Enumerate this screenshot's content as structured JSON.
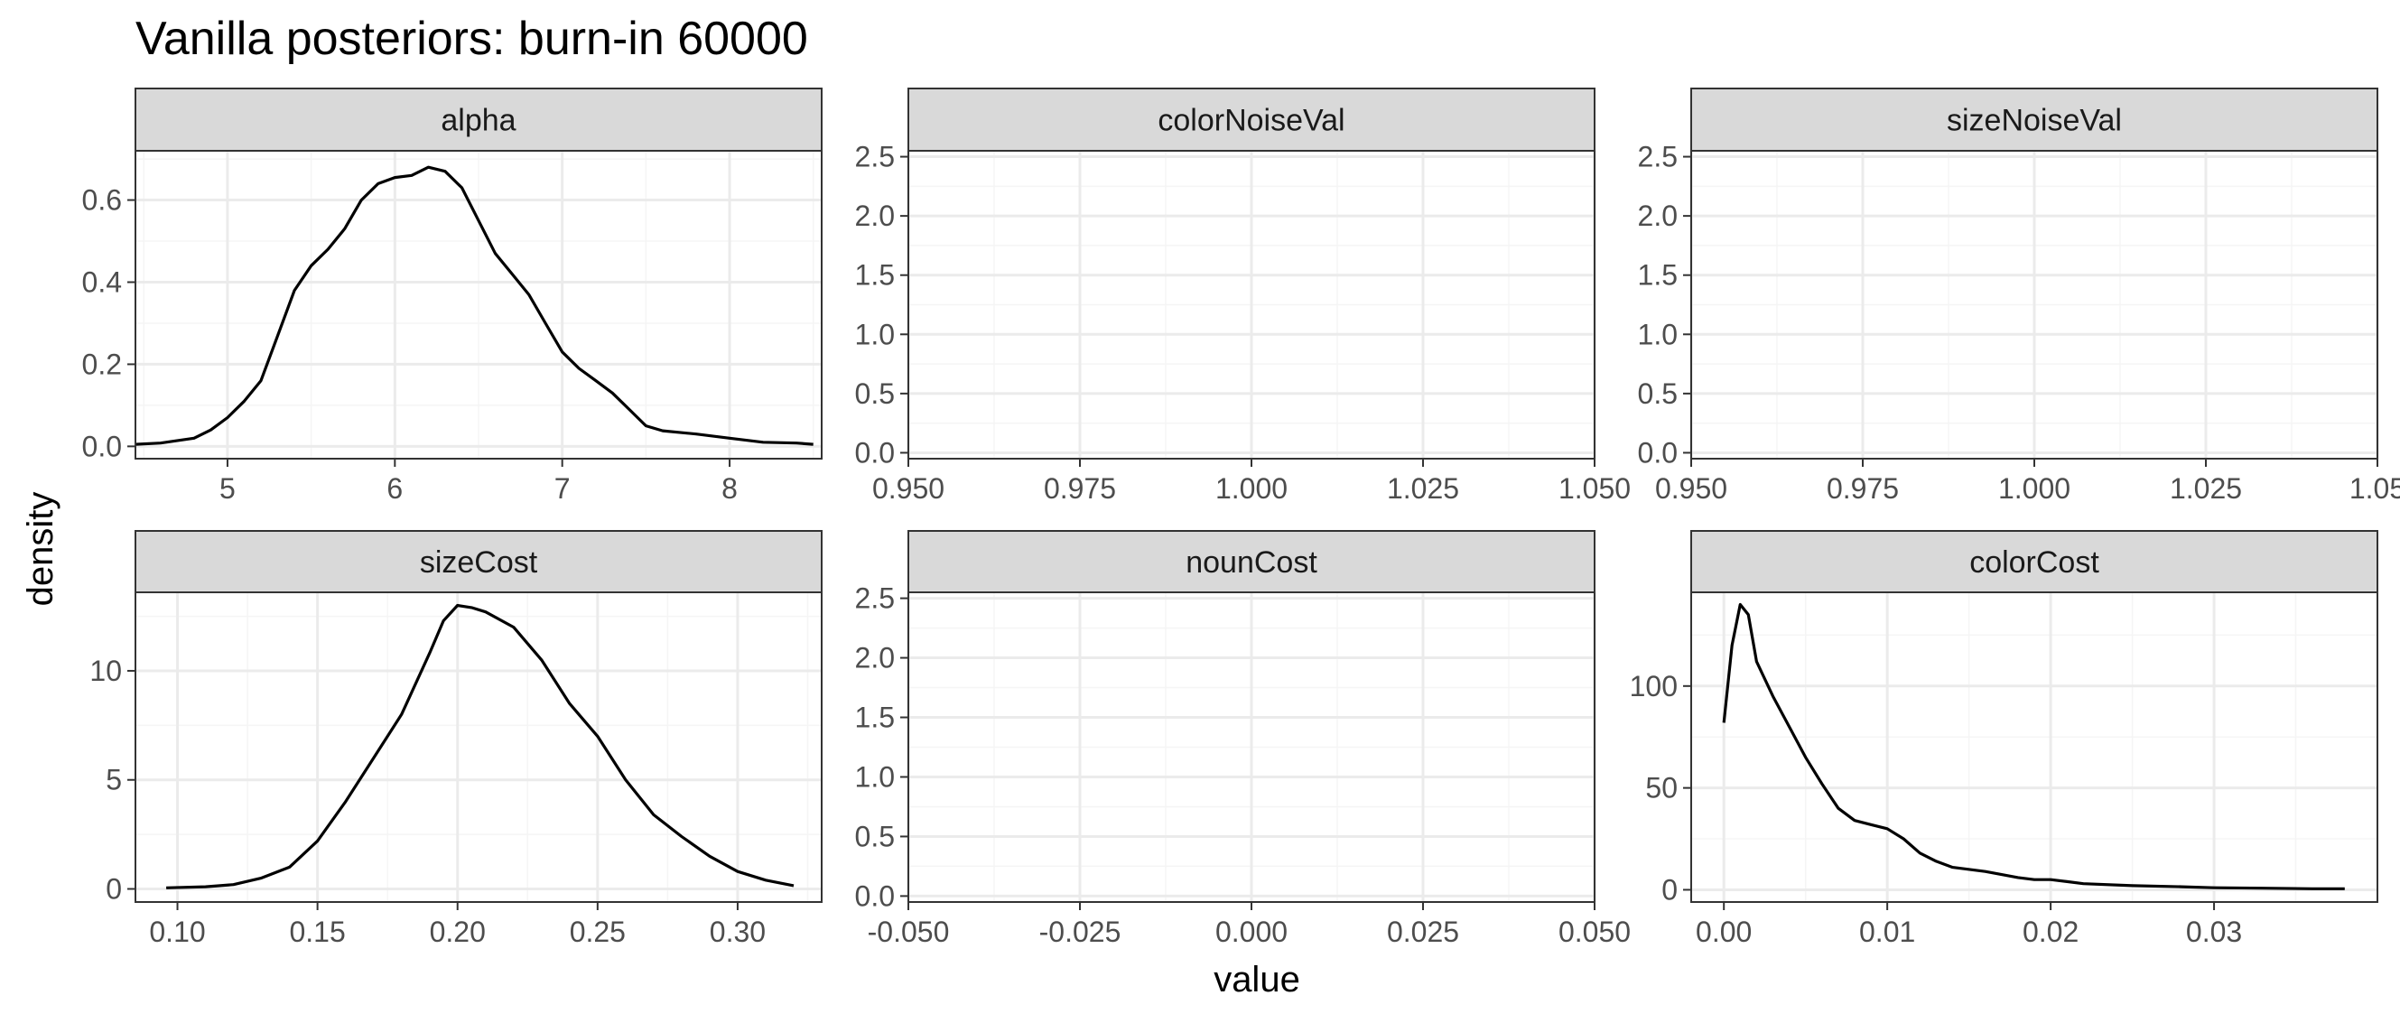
{
  "chart_data": {
    "type": "line",
    "title": "Vanilla posteriors: burn-in 60000",
    "xlabel": "value",
    "ylabel": "density",
    "grid": true,
    "legend": "none",
    "colors": {
      "line": "#000000",
      "strip_fill": "#d9d9d9",
      "strip_border": "#333333",
      "panel_border": "#333333",
      "grid_major": "#ebebeb",
      "grid_minor": "#f5f5f5",
      "tick_text": "#4d4d4d"
    },
    "panels": [
      {
        "name": "alpha",
        "xlim": [
          4.45,
          8.55
        ],
        "ylim": [
          -0.03,
          0.72
        ],
        "xticks": [
          5,
          6,
          7,
          8
        ],
        "xtick_labels": [
          "5",
          "6",
          "7",
          "8"
        ],
        "yticks": [
          0,
          0.2,
          0.4,
          0.6
        ],
        "ytick_labels": [
          "0.0",
          "0.2",
          "0.4",
          "0.6"
        ],
        "x": [
          4.45,
          4.6,
          4.8,
          4.9,
          5.0,
          5.1,
          5.2,
          5.3,
          5.4,
          5.5,
          5.6,
          5.7,
          5.8,
          5.9,
          6.0,
          6.1,
          6.2,
          6.3,
          6.4,
          6.5,
          6.6,
          6.7,
          6.8,
          6.9,
          7.0,
          7.1,
          7.2,
          7.3,
          7.4,
          7.5,
          7.6,
          7.8,
          8.0,
          8.2,
          8.4,
          8.5
        ],
        "y": [
          0.005,
          0.008,
          0.02,
          0.04,
          0.07,
          0.11,
          0.16,
          0.27,
          0.38,
          0.44,
          0.48,
          0.53,
          0.6,
          0.64,
          0.655,
          0.66,
          0.68,
          0.67,
          0.63,
          0.55,
          0.47,
          0.42,
          0.37,
          0.3,
          0.23,
          0.19,
          0.16,
          0.13,
          0.09,
          0.05,
          0.038,
          0.03,
          0.02,
          0.01,
          0.008,
          0.005
        ]
      },
      {
        "name": "colorNoiseVal",
        "xlim": [
          0.95,
          1.05
        ],
        "ylim": [
          -0.05,
          2.55
        ],
        "xticks": [
          0.95,
          0.975,
          1.0,
          1.025,
          1.05
        ],
        "xtick_labels": [
          "0.950",
          "0.975",
          "1.000",
          "1.025",
          "1.050"
        ],
        "yticks": [
          0,
          0.5,
          1.0,
          1.5,
          2.0,
          2.5
        ],
        "ytick_labels": [
          "0.0",
          "0.5",
          "1.0",
          "1.5",
          "2.0",
          "2.5"
        ],
        "x": [],
        "y": []
      },
      {
        "name": "sizeNoiseVal",
        "xlim": [
          0.95,
          1.05
        ],
        "ylim": [
          -0.05,
          2.55
        ],
        "xticks": [
          0.95,
          0.975,
          1.0,
          1.025,
          1.05
        ],
        "xtick_labels": [
          "0.950",
          "0.975",
          "1.000",
          "1.025",
          "1.05"
        ],
        "yticks": [
          0,
          0.5,
          1.0,
          1.5,
          2.0,
          2.5
        ],
        "ytick_labels": [
          "0.0",
          "0.5",
          "1.0",
          "1.5",
          "2.0",
          "2.5"
        ],
        "x": [],
        "y": []
      },
      {
        "name": "sizeCost",
        "xlim": [
          0.085,
          0.33
        ],
        "ylim": [
          -0.6,
          13.6
        ],
        "xticks": [
          0.1,
          0.15,
          0.2,
          0.25,
          0.3
        ],
        "xtick_labels": [
          "0.10",
          "0.15",
          "0.20",
          "0.25",
          "0.30"
        ],
        "yticks": [
          0,
          5,
          10
        ],
        "ytick_labels": [
          "0",
          "5",
          "10"
        ],
        "x": [
          0.096,
          0.11,
          0.12,
          0.13,
          0.14,
          0.15,
          0.16,
          0.17,
          0.18,
          0.19,
          0.195,
          0.2,
          0.205,
          0.21,
          0.22,
          0.23,
          0.24,
          0.25,
          0.26,
          0.27,
          0.28,
          0.29,
          0.3,
          0.31,
          0.32
        ],
        "y": [
          0.05,
          0.1,
          0.2,
          0.5,
          1.0,
          2.2,
          4.0,
          6.0,
          8.0,
          10.8,
          12.3,
          13.0,
          12.9,
          12.7,
          12.0,
          10.5,
          8.5,
          7.0,
          5.0,
          3.4,
          2.4,
          1.5,
          0.8,
          0.4,
          0.15
        ]
      },
      {
        "name": "nounCost",
        "xlim": [
          -0.05,
          0.05
        ],
        "ylim": [
          -0.05,
          2.55
        ],
        "xticks": [
          -0.05,
          -0.025,
          0.0,
          0.025,
          0.05
        ],
        "xtick_labels": [
          "-0.050",
          "-0.025",
          "0.000",
          "0.025",
          "0.050"
        ],
        "yticks": [
          0,
          0.5,
          1.0,
          1.5,
          2.0,
          2.5
        ],
        "ytick_labels": [
          "0.0",
          "0.5",
          "1.0",
          "1.5",
          "2.0",
          "2.5"
        ],
        "x": [],
        "y": []
      },
      {
        "name": "colorCost",
        "xlim": [
          -0.002,
          0.04
        ],
        "ylim": [
          -6,
          146
        ],
        "xticks": [
          0.0,
          0.01,
          0.02,
          0.03
        ],
        "xtick_labels": [
          "0.00",
          "0.01",
          "0.02",
          "0.03"
        ],
        "yticks": [
          0,
          50,
          100
        ],
        "ytick_labels": [
          "0",
          "50",
          "100"
        ],
        "x": [
          0.0,
          0.0005,
          0.001,
          0.0015,
          0.002,
          0.003,
          0.004,
          0.005,
          0.006,
          0.007,
          0.008,
          0.009,
          0.01,
          0.011,
          0.012,
          0.013,
          0.014,
          0.016,
          0.018,
          0.019,
          0.02,
          0.021,
          0.022,
          0.025,
          0.028,
          0.03,
          0.033,
          0.036,
          0.038
        ],
        "y": [
          82,
          120,
          140,
          135,
          112,
          95,
          80,
          65,
          52,
          40,
          34,
          32,
          30,
          25,
          18,
          14,
          11,
          9,
          6,
          5,
          5,
          4,
          3,
          2,
          1.5,
          1,
          0.8,
          0.5,
          0.5
        ]
      }
    ]
  }
}
